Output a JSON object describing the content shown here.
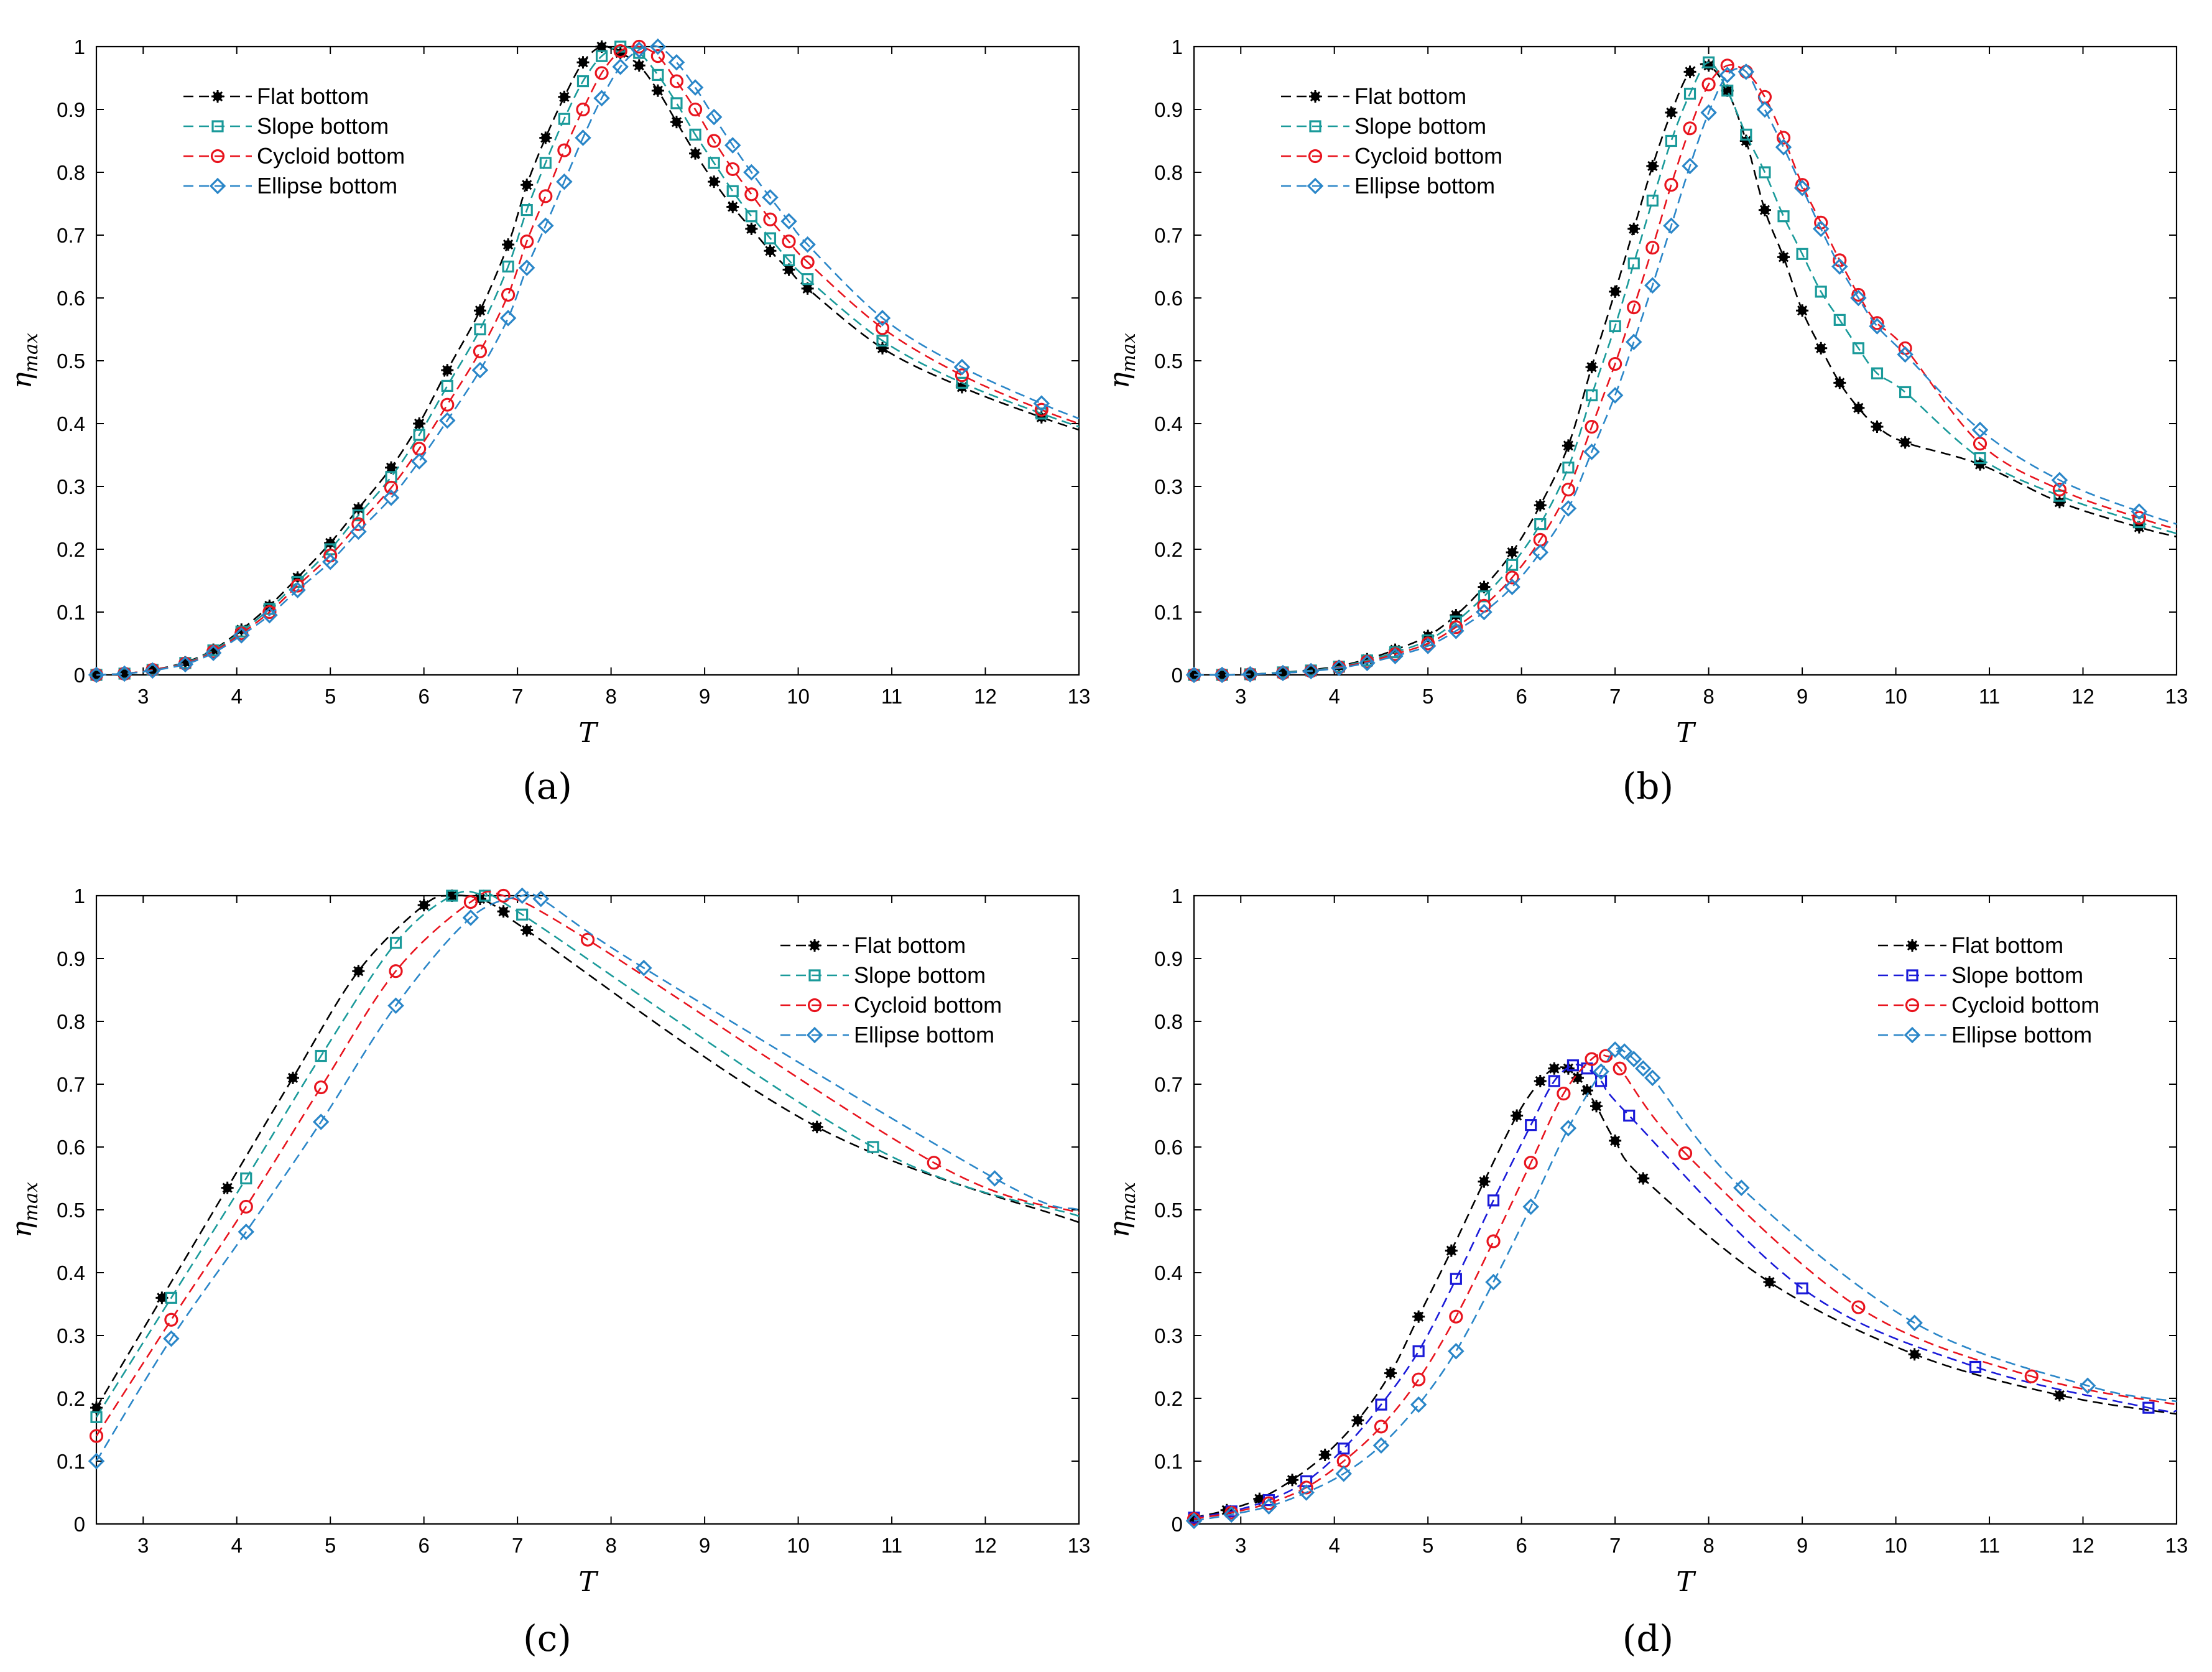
{
  "figure": {
    "captions": [
      "(a)",
      "(b)",
      "(c)",
      "(d)"
    ]
  },
  "series_styles": {
    "flat": {
      "color": "#000000",
      "marker": "asterisk-icon"
    },
    "slope": {
      "color": "#1a9a9a",
      "marker": "square-icon"
    },
    "slope_d": {
      "color": "#1a1ad8",
      "marker": "square-icon"
    },
    "cycloid": {
      "color": "#e8141e",
      "marker": "circle-icon"
    },
    "ellipse": {
      "color": "#2a86c8",
      "marker": "diamond-icon"
    }
  },
  "chart_data": [
    {
      "type": "line",
      "panel": "(a)",
      "xlabel": "T",
      "ylabel": "η_max",
      "xlim": [
        2.5,
        13
      ],
      "ylim": [
        0,
        1
      ],
      "xticks": [
        "3",
        "4",
        "5",
        "6",
        "7",
        "8",
        "9",
        "10",
        "11",
        "12",
        "13"
      ],
      "yticks": [
        "0",
        "0.1",
        "0.2",
        "0.3",
        "0.4",
        "0.5",
        "0.6",
        "0.7",
        "0.8",
        "0.9",
        "1"
      ],
      "legend_position": "top-left",
      "series": [
        {
          "name": "Flat bottom",
          "style": "flat",
          "x": [
            2.5,
            2.8,
            3.1,
            3.45,
            3.75,
            4.05,
            4.35,
            4.65,
            5.0,
            5.3,
            5.65,
            5.95,
            6.25,
            6.6,
            6.9,
            7.1,
            7.3,
            7.5,
            7.7,
            7.9,
            8.1,
            8.3,
            8.5,
            8.7,
            8.9,
            9.1,
            9.3,
            9.5,
            9.7,
            9.9,
            10.1,
            10.9,
            11.75,
            12.6,
            13.0
          ],
          "y": [
            0,
            0.002,
            0.008,
            0.02,
            0.04,
            0.072,
            0.11,
            0.155,
            0.21,
            0.265,
            0.33,
            0.4,
            0.485,
            0.58,
            0.685,
            0.78,
            0.855,
            0.92,
            0.975,
            1.0,
            0.99,
            0.97,
            0.93,
            0.88,
            0.83,
            0.785,
            0.745,
            0.71,
            0.675,
            0.645,
            0.615,
            0.52,
            0.458,
            0.41,
            0.39
          ]
        },
        {
          "name": "Slope bottom",
          "style": "slope",
          "x": [
            2.5,
            2.8,
            3.1,
            3.45,
            3.75,
            4.05,
            4.35,
            4.65,
            5.0,
            5.3,
            5.65,
            5.95,
            6.25,
            6.6,
            6.9,
            7.1,
            7.3,
            7.5,
            7.7,
            7.9,
            8.1,
            8.3,
            8.5,
            8.7,
            8.9,
            9.1,
            9.3,
            9.5,
            9.7,
            9.9,
            10.1,
            10.9,
            11.75,
            12.6,
            13.0
          ],
          "y": [
            0,
            0.002,
            0.008,
            0.019,
            0.039,
            0.069,
            0.105,
            0.148,
            0.2,
            0.254,
            0.315,
            0.382,
            0.46,
            0.55,
            0.65,
            0.74,
            0.815,
            0.885,
            0.945,
            0.985,
            1.0,
            0.99,
            0.955,
            0.91,
            0.86,
            0.815,
            0.77,
            0.73,
            0.695,
            0.66,
            0.63,
            0.532,
            0.465,
            0.416,
            0.395
          ]
        },
        {
          "name": "Cycloid bottom",
          "style": "cycloid",
          "x": [
            2.5,
            2.8,
            3.1,
            3.45,
            3.75,
            4.05,
            4.35,
            4.65,
            5.0,
            5.3,
            5.65,
            5.95,
            6.25,
            6.6,
            6.9,
            7.1,
            7.3,
            7.5,
            7.7,
            7.9,
            8.1,
            8.3,
            8.5,
            8.7,
            8.9,
            9.1,
            9.3,
            9.5,
            9.7,
            9.9,
            10.1,
            10.9,
            11.75,
            12.6,
            13.0
          ],
          "y": [
            0,
            0.002,
            0.008,
            0.018,
            0.037,
            0.066,
            0.1,
            0.142,
            0.19,
            0.24,
            0.298,
            0.36,
            0.43,
            0.515,
            0.605,
            0.69,
            0.762,
            0.835,
            0.9,
            0.958,
            0.993,
            1.0,
            0.985,
            0.945,
            0.9,
            0.85,
            0.805,
            0.765,
            0.725,
            0.69,
            0.657,
            0.552,
            0.477,
            0.422,
            0.4
          ]
        },
        {
          "name": "Ellipse bottom",
          "style": "ellipse",
          "x": [
            2.5,
            2.8,
            3.1,
            3.45,
            3.75,
            4.05,
            4.35,
            4.65,
            5.0,
            5.3,
            5.65,
            5.95,
            6.25,
            6.6,
            6.9,
            7.1,
            7.3,
            7.5,
            7.7,
            7.9,
            8.1,
            8.3,
            8.5,
            8.7,
            8.9,
            9.1,
            9.3,
            9.5,
            9.7,
            9.9,
            10.1,
            10.9,
            11.75,
            12.6,
            13.0
          ],
          "y": [
            0,
            0.002,
            0.007,
            0.017,
            0.035,
            0.063,
            0.095,
            0.135,
            0.18,
            0.228,
            0.282,
            0.34,
            0.405,
            0.485,
            0.568,
            0.648,
            0.715,
            0.785,
            0.855,
            0.918,
            0.968,
            0.995,
            1.0,
            0.975,
            0.935,
            0.888,
            0.843,
            0.8,
            0.76,
            0.722,
            0.685,
            0.568,
            0.49,
            0.432,
            0.408
          ]
        }
      ]
    },
    {
      "type": "line",
      "panel": "(b)",
      "xlabel": "T",
      "ylabel": "η_max",
      "xlim": [
        2.5,
        13
      ],
      "ylim": [
        0,
        1
      ],
      "xticks": [
        "3",
        "4",
        "5",
        "6",
        "7",
        "8",
        "9",
        "10",
        "11",
        "12",
        "13"
      ],
      "yticks": [
        "0",
        "0.1",
        "0.2",
        "0.3",
        "0.4",
        "0.5",
        "0.6",
        "0.7",
        "0.8",
        "0.9",
        "1"
      ],
      "legend_position": "top-left",
      "series": [
        {
          "name": "Flat bottom",
          "style": "flat",
          "x": [
            2.5,
            2.8,
            3.1,
            3.45,
            3.75,
            4.05,
            4.35,
            4.65,
            5.0,
            5.3,
            5.6,
            5.9,
            6.2,
            6.5,
            6.75,
            7.0,
            7.2,
            7.4,
            7.6,
            7.8,
            8.0,
            8.2,
            8.4,
            8.6,
            8.8,
            9.0,
            9.2,
            9.4,
            9.6,
            9.8,
            10.1,
            10.9,
            11.75,
            12.6,
            13.0
          ],
          "y": [
            0,
            0,
            0.001,
            0.004,
            0.008,
            0.014,
            0.025,
            0.04,
            0.062,
            0.095,
            0.14,
            0.195,
            0.27,
            0.365,
            0.49,
            0.61,
            0.71,
            0.81,
            0.895,
            0.96,
            0.97,
            0.93,
            0.85,
            0.74,
            0.665,
            0.58,
            0.52,
            0.465,
            0.425,
            0.395,
            0.37,
            0.335,
            0.275,
            0.235,
            0.22
          ]
        },
        {
          "name": "Slope bottom",
          "style": "slope",
          "x": [
            2.5,
            2.8,
            3.1,
            3.45,
            3.75,
            4.05,
            4.35,
            4.65,
            5.0,
            5.3,
            5.6,
            5.9,
            6.2,
            6.5,
            6.75,
            7.0,
            7.2,
            7.4,
            7.6,
            7.8,
            8.0,
            8.2,
            8.4,
            8.6,
            8.8,
            9.0,
            9.2,
            9.4,
            9.6,
            9.8,
            10.1,
            10.9,
            11.75,
            12.6,
            13.0
          ],
          "y": [
            0,
            0,
            0.001,
            0.004,
            0.007,
            0.013,
            0.023,
            0.036,
            0.055,
            0.085,
            0.125,
            0.175,
            0.24,
            0.33,
            0.445,
            0.555,
            0.655,
            0.755,
            0.85,
            0.925,
            0.975,
            0.93,
            0.86,
            0.8,
            0.73,
            0.67,
            0.61,
            0.565,
            0.52,
            0.48,
            0.45,
            0.345,
            0.285,
            0.243,
            0.225
          ]
        },
        {
          "name": "Cycloid bottom",
          "style": "cycloid",
          "x": [
            2.5,
            2.8,
            3.1,
            3.45,
            3.75,
            4.05,
            4.35,
            4.65,
            5.0,
            5.3,
            5.6,
            5.9,
            6.2,
            6.5,
            6.75,
            7.0,
            7.2,
            7.4,
            7.6,
            7.8,
            8.0,
            8.2,
            8.4,
            8.6,
            8.8,
            9.0,
            9.2,
            9.4,
            9.6,
            9.8,
            10.1,
            10.9,
            11.75,
            12.6,
            13.0
          ],
          "y": [
            0,
            0,
            0.001,
            0.003,
            0.006,
            0.012,
            0.021,
            0.033,
            0.05,
            0.076,
            0.11,
            0.155,
            0.215,
            0.295,
            0.395,
            0.495,
            0.585,
            0.68,
            0.78,
            0.87,
            0.94,
            0.97,
            0.96,
            0.92,
            0.855,
            0.78,
            0.72,
            0.66,
            0.605,
            0.56,
            0.52,
            0.368,
            0.295,
            0.25,
            0.232
          ]
        },
        {
          "name": "Ellipse bottom",
          "style": "ellipse",
          "x": [
            2.5,
            2.8,
            3.1,
            3.45,
            3.75,
            4.05,
            4.35,
            4.65,
            5.0,
            5.3,
            5.6,
            5.9,
            6.2,
            6.5,
            6.75,
            7.0,
            7.2,
            7.4,
            7.6,
            7.8,
            8.0,
            8.2,
            8.4,
            8.6,
            8.8,
            9.0,
            9.2,
            9.4,
            9.6,
            9.8,
            10.1,
            10.9,
            11.75,
            12.6,
            13.0
          ],
          "y": [
            0,
            0,
            0.001,
            0.003,
            0.006,
            0.011,
            0.019,
            0.03,
            0.046,
            0.07,
            0.1,
            0.14,
            0.195,
            0.265,
            0.355,
            0.445,
            0.53,
            0.62,
            0.715,
            0.81,
            0.895,
            0.955,
            0.96,
            0.9,
            0.84,
            0.775,
            0.71,
            0.65,
            0.6,
            0.555,
            0.51,
            0.39,
            0.31,
            0.26,
            0.24
          ]
        }
      ]
    },
    {
      "type": "line",
      "panel": "(c)",
      "xlabel": "T",
      "ylabel": "η_max",
      "xlim": [
        2.5,
        13
      ],
      "ylim": [
        0,
        1
      ],
      "xticks": [
        "3",
        "4",
        "5",
        "6",
        "7",
        "8",
        "9",
        "10",
        "11",
        "12",
        "13"
      ],
      "yticks": [
        "0",
        "0.1",
        "0.2",
        "0.3",
        "0.4",
        "0.5",
        "0.6",
        "0.7",
        "0.8",
        "0.9",
        "1"
      ],
      "legend_position": "top-right",
      "series": [
        {
          "name": "Flat bottom",
          "style": "flat",
          "x": [
            2.5,
            3.2,
            3.9,
            4.6,
            5.3,
            6.0,
            6.3,
            6.6,
            6.85,
            7.1,
            10.2,
            13.0
          ],
          "y": [
            0.185,
            0.36,
            0.535,
            0.71,
            0.88,
            0.985,
            1.0,
            0.995,
            0.975,
            0.945,
            0.632,
            0.48
          ]
        },
        {
          "name": "Slope bottom",
          "style": "slope",
          "x": [
            2.5,
            3.3,
            4.1,
            4.9,
            5.7,
            6.3,
            6.65,
            7.05,
            10.8,
            13.0
          ],
          "y": [
            0.17,
            0.36,
            0.55,
            0.745,
            0.925,
            1.0,
            1.0,
            0.97,
            0.6,
            0.49
          ]
        },
        {
          "name": "Cycloid bottom",
          "style": "cycloid",
          "x": [
            2.5,
            3.3,
            4.1,
            4.9,
            5.7,
            6.5,
            6.85,
            7.75,
            11.45,
            13.0
          ],
          "y": [
            0.14,
            0.325,
            0.505,
            0.695,
            0.88,
            0.99,
            1.0,
            0.93,
            0.575,
            0.495
          ]
        },
        {
          "name": "Ellipse bottom",
          "style": "ellipse",
          "x": [
            2.5,
            3.3,
            4.1,
            4.9,
            5.7,
            6.5,
            7.05,
            7.25,
            8.35,
            12.1,
            13.0
          ],
          "y": [
            0.1,
            0.295,
            0.465,
            0.64,
            0.825,
            0.965,
            1.0,
            0.995,
            0.885,
            0.55,
            0.5
          ]
        }
      ]
    },
    {
      "type": "line",
      "panel": "(d)",
      "xlabel": "T",
      "ylabel": "η_max",
      "xlim": [
        2.5,
        13
      ],
      "ylim": [
        0,
        1
      ],
      "xticks": [
        "3",
        "4",
        "5",
        "6",
        "7",
        "8",
        "9",
        "10",
        "11",
        "12",
        "13"
      ],
      "yticks": [
        "0",
        "0.1",
        "0.2",
        "0.3",
        "0.4",
        "0.5",
        "0.6",
        "0.7",
        "0.8",
        "0.9",
        "1"
      ],
      "legend_position": "top-right",
      "series": [
        {
          "name": "Flat bottom",
          "style": "flat",
          "x": [
            2.5,
            2.85,
            3.2,
            3.55,
            3.9,
            4.25,
            4.6,
            4.9,
            5.25,
            5.6,
            5.95,
            6.2,
            6.35,
            6.5,
            6.6,
            6.7,
            6.8,
            7.0,
            7.3,
            8.65,
            10.2,
            11.75,
            13.0
          ],
          "y": [
            0.01,
            0.022,
            0.04,
            0.07,
            0.11,
            0.165,
            0.24,
            0.33,
            0.435,
            0.545,
            0.65,
            0.705,
            0.725,
            0.725,
            0.71,
            0.69,
            0.665,
            0.61,
            0.55,
            0.385,
            0.27,
            0.205,
            0.175
          ]
        },
        {
          "name": "Slope bottom",
          "style": "slope_d",
          "x": [
            2.5,
            2.9,
            3.3,
            3.7,
            4.1,
            4.5,
            4.9,
            5.3,
            5.7,
            6.1,
            6.35,
            6.55,
            6.7,
            6.85,
            7.15,
            9.0,
            10.85,
            12.7,
            13.0
          ],
          "y": [
            0.01,
            0.02,
            0.038,
            0.068,
            0.12,
            0.19,
            0.275,
            0.39,
            0.515,
            0.635,
            0.705,
            0.73,
            0.725,
            0.705,
            0.65,
            0.375,
            0.25,
            0.185,
            0.18
          ]
        },
        {
          "name": "Cycloid bottom",
          "style": "cycloid",
          "x": [
            2.5,
            2.9,
            3.3,
            3.7,
            4.1,
            4.5,
            4.9,
            5.3,
            5.7,
            6.1,
            6.45,
            6.75,
            6.9,
            7.05,
            7.75,
            9.6,
            11.45,
            13.0
          ],
          "y": [
            0.008,
            0.018,
            0.033,
            0.058,
            0.1,
            0.155,
            0.23,
            0.33,
            0.45,
            0.575,
            0.685,
            0.74,
            0.745,
            0.725,
            0.59,
            0.345,
            0.235,
            0.19
          ]
        },
        {
          "name": "Ellipse bottom",
          "style": "ellipse",
          "x": [
            2.5,
            2.9,
            3.3,
            3.7,
            4.1,
            4.5,
            4.9,
            5.3,
            5.7,
            6.1,
            6.5,
            6.85,
            7.0,
            7.1,
            7.2,
            7.3,
            7.4,
            8.35,
            10.2,
            12.05,
            13.0
          ],
          "y": [
            0.005,
            0.015,
            0.028,
            0.05,
            0.08,
            0.125,
            0.19,
            0.275,
            0.385,
            0.505,
            0.63,
            0.72,
            0.755,
            0.752,
            0.74,
            0.725,
            0.71,
            0.535,
            0.32,
            0.22,
            0.195
          ]
        }
      ]
    }
  ]
}
